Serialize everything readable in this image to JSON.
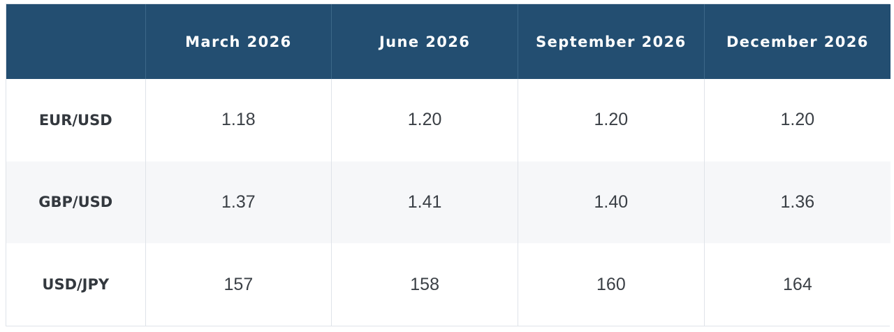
{
  "chart_data": {
    "type": "table",
    "columns": [
      "",
      "March 2026",
      "June 2026",
      "September 2026",
      "December 2026"
    ],
    "rows": [
      {
        "label": "EUR/USD",
        "values": [
          "1.18",
          "1.20",
          "1.20",
          "1.20"
        ]
      },
      {
        "label": "GBP/USD",
        "values": [
          "1.37",
          "1.41",
          "1.40",
          "1.36"
        ]
      },
      {
        "label": "USD/JPY",
        "values": [
          "157",
          "158",
          "160",
          "164"
        ]
      }
    ]
  },
  "colors": {
    "header_background": "#234e71",
    "header_text": "#ffffff",
    "alt_row_background": "#f6f7f9"
  }
}
